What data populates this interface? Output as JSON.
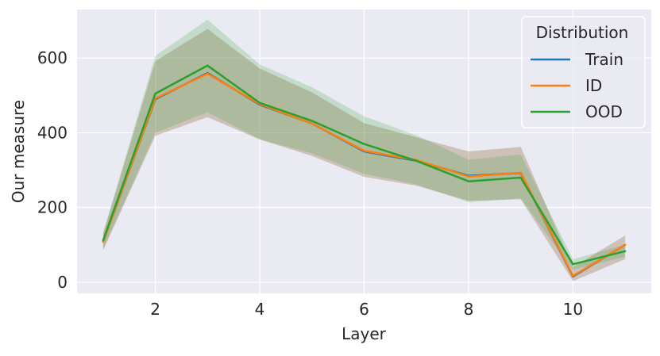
{
  "chart_data": {
    "type": "line",
    "title": "",
    "xlabel": "Layer",
    "ylabel": "Our measure",
    "x": [
      1,
      2,
      3,
      4,
      5,
      6,
      7,
      8,
      9,
      10,
      11
    ],
    "xlim": [
      0.5,
      11.5
    ],
    "ylim": [
      -30,
      730
    ],
    "xticks": [
      2,
      4,
      6,
      8,
      10
    ],
    "yticks": [
      0,
      200,
      400,
      600
    ],
    "grid": true,
    "legend": {
      "title": "Distribution",
      "position": "top-right"
    },
    "series": [
      {
        "name": "Train",
        "color": "#1f77b4",
        "values": [
          108,
          490,
          560,
          475,
          425,
          350,
          325,
          285,
          292,
          15,
          100
        ],
        "lower": [
          85,
          392,
          442,
          382,
          338,
          282,
          258,
          218,
          222,
          3,
          62
        ],
        "upper": [
          130,
          592,
          678,
          572,
          508,
          426,
          388,
          350,
          362,
          40,
          125
        ]
      },
      {
        "name": "ID",
        "color": "#ff7f0e",
        "values": [
          108,
          492,
          558,
          477,
          425,
          352,
          327,
          283,
          293,
          17,
          100
        ],
        "lower": [
          85,
          392,
          442,
          382,
          338,
          282,
          258,
          218,
          222,
          3,
          62
        ],
        "upper": [
          130,
          592,
          678,
          572,
          508,
          426,
          388,
          350,
          362,
          40,
          125
        ]
      },
      {
        "name": "OOD",
        "color": "#2ca02c",
        "values": [
          112,
          505,
          580,
          480,
          432,
          370,
          325,
          270,
          280,
          48,
          83
        ],
        "lower": [
          90,
          400,
          455,
          383,
          345,
          290,
          262,
          214,
          224,
          33,
          68
        ],
        "upper": [
          133,
          606,
          703,
          583,
          522,
          444,
          393,
          328,
          342,
          62,
          100
        ]
      }
    ]
  }
}
